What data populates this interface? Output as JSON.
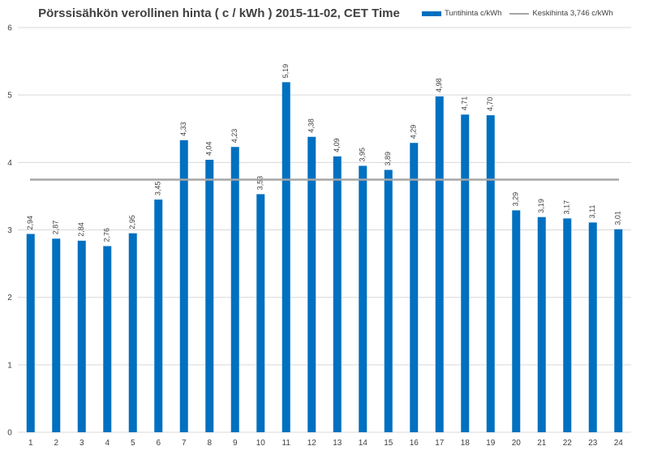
{
  "chart_data": {
    "type": "bar",
    "title": "Pörssisähkön verollinen hinta ( c / kWh ) 2015-11-02, CET Time",
    "categories": [
      "1",
      "2",
      "3",
      "4",
      "5",
      "6",
      "7",
      "8",
      "9",
      "10",
      "11",
      "12",
      "13",
      "14",
      "15",
      "16",
      "17",
      "18",
      "19",
      "20",
      "21",
      "22",
      "23",
      "24"
    ],
    "series": [
      {
        "name": "Tuntihinta c/kWh",
        "color": "#0070c0",
        "values": [
          2.94,
          2.87,
          2.84,
          2.76,
          2.95,
          3.45,
          4.33,
          4.04,
          4.23,
          3.53,
          5.19,
          4.38,
          4.09,
          3.95,
          3.89,
          4.29,
          4.98,
          4.71,
          4.7,
          3.29,
          3.19,
          3.17,
          3.11,
          3.01
        ],
        "labels": [
          "2,94",
          "2,87",
          "2,84",
          "2,76",
          "2,95",
          "3,45",
          "4,33",
          "4,04",
          "4,23",
          "3,53",
          "5,19",
          "4,38",
          "4,09",
          "3,95",
          "3,89",
          "4,29",
          "4,98",
          "4,71",
          "4,70",
          "3,29",
          "3,19",
          "3,17",
          "3,11",
          "3,01"
        ]
      }
    ],
    "reference_line": {
      "name": "Keskihinta 3,746 c/kWh",
      "value": 3.746,
      "color": "#a6a6a6"
    },
    "y_ticks": [
      "0",
      "1",
      "2",
      "3",
      "4",
      "5",
      "6"
    ],
    "ylim": [
      0,
      6
    ],
    "grid": true,
    "legend_position": "top-right"
  }
}
